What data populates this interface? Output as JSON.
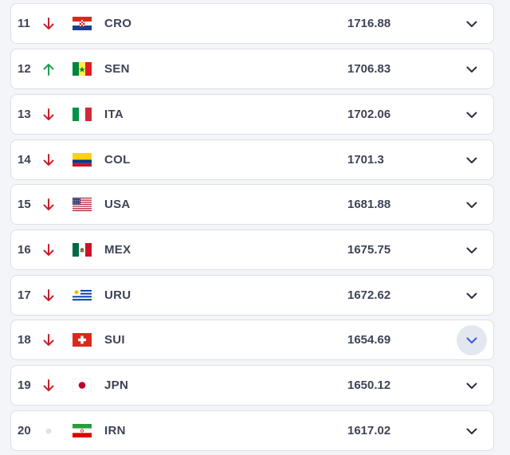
{
  "colors": {
    "down": "#c8212b",
    "up": "#1fa04c",
    "same": "#dfe2ea",
    "text": "#3d4456",
    "chevron": "#2b2f3b",
    "chevron_active": "#3b5bd6"
  },
  "rankings": [
    {
      "rank": "11",
      "trend": "down",
      "flag": "flag-croatia",
      "code": "CRO",
      "points": "1716.88"
    },
    {
      "rank": "12",
      "trend": "up",
      "flag": "flag-senegal",
      "code": "SEN",
      "points": "1706.83"
    },
    {
      "rank": "13",
      "trend": "down",
      "flag": "flag-italy",
      "code": "ITA",
      "points": "1702.06"
    },
    {
      "rank": "14",
      "trend": "down",
      "flag": "flag-colombia",
      "code": "COL",
      "points": "1701.3"
    },
    {
      "rank": "15",
      "trend": "down",
      "flag": "flag-usa",
      "code": "USA",
      "points": "1681.88"
    },
    {
      "rank": "16",
      "trend": "down",
      "flag": "flag-mexico",
      "code": "MEX",
      "points": "1675.75"
    },
    {
      "rank": "17",
      "trend": "down",
      "flag": "flag-uruguay",
      "code": "URU",
      "points": "1672.62"
    },
    {
      "rank": "18",
      "trend": "down",
      "flag": "flag-switzerland",
      "code": "SUI",
      "points": "1654.69",
      "expand_active": true
    },
    {
      "rank": "19",
      "trend": "down",
      "flag": "flag-japan",
      "code": "JPN",
      "points": "1650.12"
    },
    {
      "rank": "20",
      "trend": "same",
      "flag": "flag-iran",
      "code": "IRN",
      "points": "1617.02"
    }
  ]
}
